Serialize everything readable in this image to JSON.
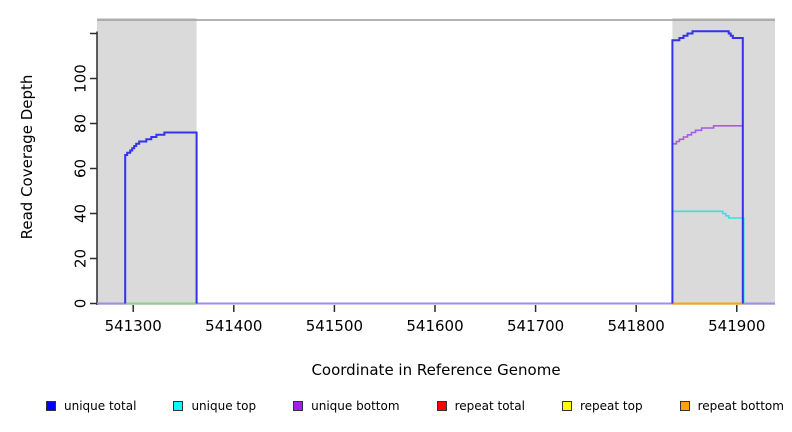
{
  "chart_data": {
    "type": "line",
    "title": "",
    "xlabel": "Coordinate in Reference Genome",
    "ylabel": "Read Coverage Depth",
    "xlim": [
      541264,
      541938
    ],
    "ylim": [
      0,
      126
    ],
    "grid": false,
    "x_ticks": [
      541300,
      541400,
      541500,
      541600,
      541700,
      541800,
      541900
    ],
    "y_ticks": [
      {
        "value": 0,
        "label": "0"
      },
      {
        "value": 20,
        "label": "20"
      },
      {
        "value": 40,
        "label": "40"
      },
      {
        "value": 60,
        "label": "60"
      },
      {
        "value": 80,
        "label": "80"
      },
      {
        "value": 100,
        "label": "100"
      },
      {
        "value": 120,
        "label": ""
      }
    ],
    "shaded_regions": [
      {
        "name": "repeat-region-left",
        "start": 541264,
        "end": 541363,
        "color": "#dadada"
      },
      {
        "name": "repeat-region-right",
        "start": 541836,
        "end": 541938,
        "color": "#dadada"
      }
    ],
    "frame_color": "#9c9c9c",
    "axis_color": "#2b2b2b",
    "series": [
      {
        "name": "zero-baseline",
        "color": "#9c8df4",
        "width": 2,
        "points": [
          [
            541264,
            0
          ],
          [
            541938,
            0
          ]
        ]
      },
      {
        "name": "zero-line-left-region",
        "color": "#8fd08f",
        "width": 2,
        "points": [
          [
            541292,
            0
          ],
          [
            541363,
            0
          ]
        ]
      },
      {
        "name": "unique-top-right",
        "color": "#3adee8",
        "width": 1.6,
        "points": [
          [
            541836,
            0
          ],
          [
            541836,
            41
          ],
          [
            541886,
            40
          ],
          [
            541889,
            39
          ],
          [
            541892,
            38
          ],
          [
            541907,
            38
          ],
          [
            541907,
            0
          ]
        ]
      },
      {
        "name": "unique-bottom-right",
        "color": "#a55ce0",
        "width": 1.6,
        "points": [
          [
            541836,
            0
          ],
          [
            541836,
            71
          ],
          [
            541840,
            72
          ],
          [
            541843,
            73
          ],
          [
            541847,
            74
          ],
          [
            541851,
            75
          ],
          [
            541855,
            76
          ],
          [
            541859,
            77
          ],
          [
            541865,
            78
          ],
          [
            541877,
            79
          ],
          [
            541906,
            79
          ],
          [
            541906,
            0
          ]
        ]
      },
      {
        "name": "repeat-bottom-right",
        "color": "#ffa500",
        "width": 2,
        "points": [
          [
            541836,
            0
          ],
          [
            541906,
            0
          ]
        ]
      },
      {
        "name": "unique-total-left",
        "color": "#3333ee",
        "width": 2,
        "points": [
          [
            541292,
            0
          ],
          [
            541292,
            66
          ],
          [
            541294,
            67
          ],
          [
            541297,
            68
          ],
          [
            541299,
            69
          ],
          [
            541301,
            70
          ],
          [
            541303,
            71
          ],
          [
            541306,
            72
          ],
          [
            541313,
            73
          ],
          [
            541318,
            74
          ],
          [
            541323,
            75
          ],
          [
            541331,
            76
          ],
          [
            541363,
            76
          ],
          [
            541363,
            0
          ]
        ]
      },
      {
        "name": "unique-total-right",
        "color": "#3333ee",
        "width": 2,
        "points": [
          [
            541836,
            0
          ],
          [
            541836,
            117
          ],
          [
            541843,
            118
          ],
          [
            541847,
            119
          ],
          [
            541851,
            120
          ],
          [
            541856,
            121
          ],
          [
            541889,
            121
          ],
          [
            541892,
            120
          ],
          [
            541894,
            119
          ],
          [
            541896,
            118
          ],
          [
            541906,
            118
          ],
          [
            541906,
            0
          ]
        ]
      }
    ],
    "legend": [
      {
        "label": "unique total",
        "color": "#0000ff"
      },
      {
        "label": "unique top",
        "color": "#00ffff"
      },
      {
        "label": "unique bottom",
        "color": "#a020f0"
      },
      {
        "label": "repeat total",
        "color": "#ff0000"
      },
      {
        "label": "repeat top",
        "color": "#ffff00"
      },
      {
        "label": "repeat bottom",
        "color": "#ffa500"
      }
    ]
  }
}
